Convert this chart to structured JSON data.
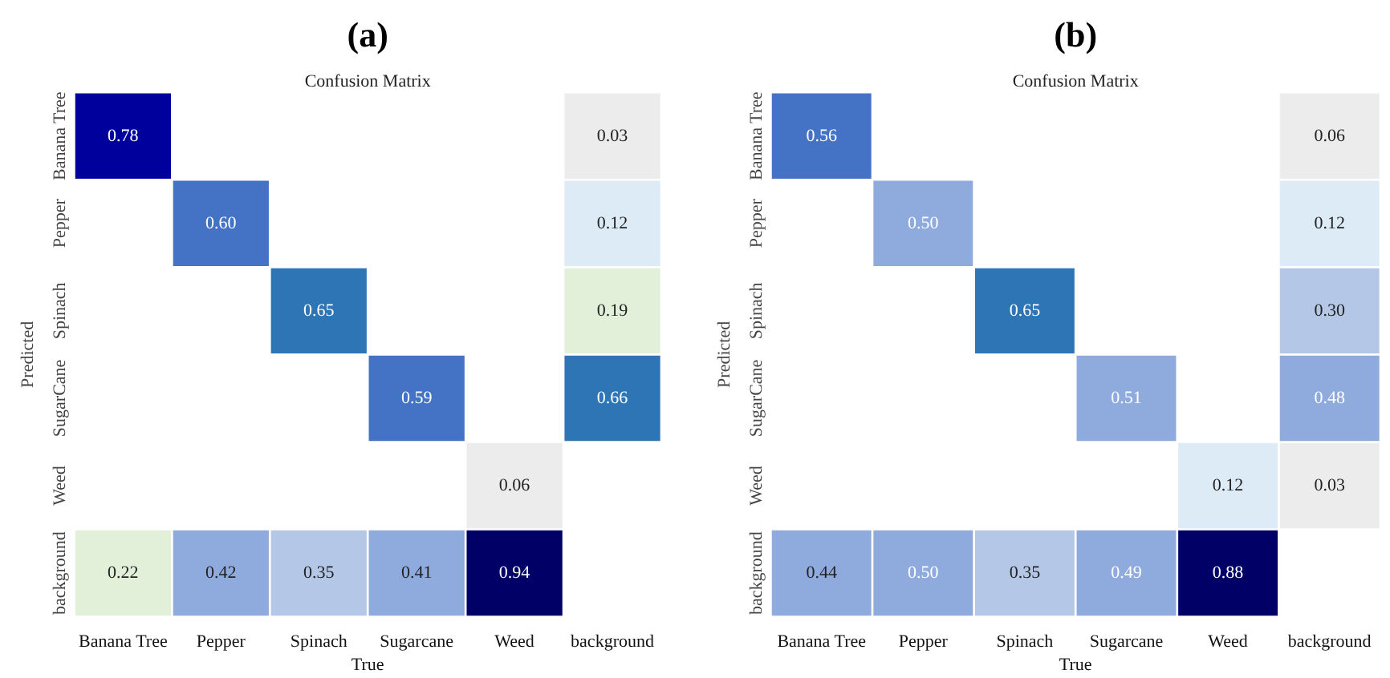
{
  "chart_data": [
    {
      "type": "heatmap",
      "title": "(a)",
      "subtitle": "Confusion Matrix",
      "xlabel": "True",
      "ylabel": "Predicted",
      "categories": [
        "Banana Tree",
        "Pepper",
        "Spinach",
        "Sugarcane",
        "Weed",
        "background"
      ],
      "y_categories": [
        "Banana Tree",
        "Pepper",
        "Spinach",
        "SugarCane",
        "Weed",
        "background"
      ],
      "cells": [
        [
          0.78,
          null,
          null,
          null,
          null,
          0.03
        ],
        [
          null,
          0.6,
          null,
          null,
          null,
          0.12
        ],
        [
          null,
          null,
          0.65,
          null,
          null,
          0.19
        ],
        [
          null,
          null,
          null,
          0.59,
          null,
          0.66
        ],
        [
          null,
          null,
          null,
          null,
          0.06,
          null
        ],
        [
          0.22,
          0.42,
          0.35,
          0.41,
          0.94,
          null
        ]
      ],
      "cell_labels": [
        [
          "0.78",
          null,
          null,
          null,
          null,
          "0.03"
        ],
        [
          null,
          "0.60",
          null,
          null,
          null,
          "0.12"
        ],
        [
          null,
          null,
          "0.65",
          null,
          null,
          "0.19"
        ],
        [
          null,
          null,
          null,
          "0.59",
          null,
          "0.66"
        ],
        [
          null,
          null,
          null,
          null,
          "0.06",
          null
        ],
        [
          "0.22",
          "0.42",
          "0.35",
          "0.41",
          "0.94",
          null
        ]
      ],
      "data_labels": true
    },
    {
      "type": "heatmap",
      "title": "(b)",
      "subtitle": "Confusion Matrix",
      "xlabel": "True",
      "ylabel": "Predicted",
      "categories": [
        "Banana Tree",
        "Pepper",
        "Spinach",
        "Sugarcane",
        "Weed",
        "background"
      ],
      "y_categories": [
        "Banana Tree",
        "Pepper",
        "Spinach",
        "SugarCane",
        "Weed",
        "background"
      ],
      "cells": [
        [
          0.56,
          null,
          null,
          null,
          null,
          0.06
        ],
        [
          null,
          0.5,
          null,
          null,
          null,
          0.12
        ],
        [
          null,
          null,
          0.65,
          null,
          null,
          0.3
        ],
        [
          null,
          null,
          null,
          0.51,
          null,
          0.48
        ],
        [
          null,
          null,
          null,
          null,
          0.12,
          0.03
        ],
        [
          0.44,
          0.5,
          0.35,
          0.49,
          0.88,
          null
        ]
      ],
      "cell_labels": [
        [
          "0.56",
          null,
          null,
          null,
          null,
          "0.06"
        ],
        [
          null,
          "0.50",
          null,
          null,
          null,
          "0.12"
        ],
        [
          null,
          null,
          "0.65",
          null,
          null,
          "0.30"
        ],
        [
          null,
          null,
          null,
          "0.51",
          null,
          "0.48"
        ],
        [
          null,
          null,
          null,
          null,
          "0.12",
          "0.03"
        ],
        [
          "0.44",
          "0.50",
          "0.35",
          "0.49",
          "0.88",
          null
        ]
      ],
      "data_labels": true
    }
  ]
}
